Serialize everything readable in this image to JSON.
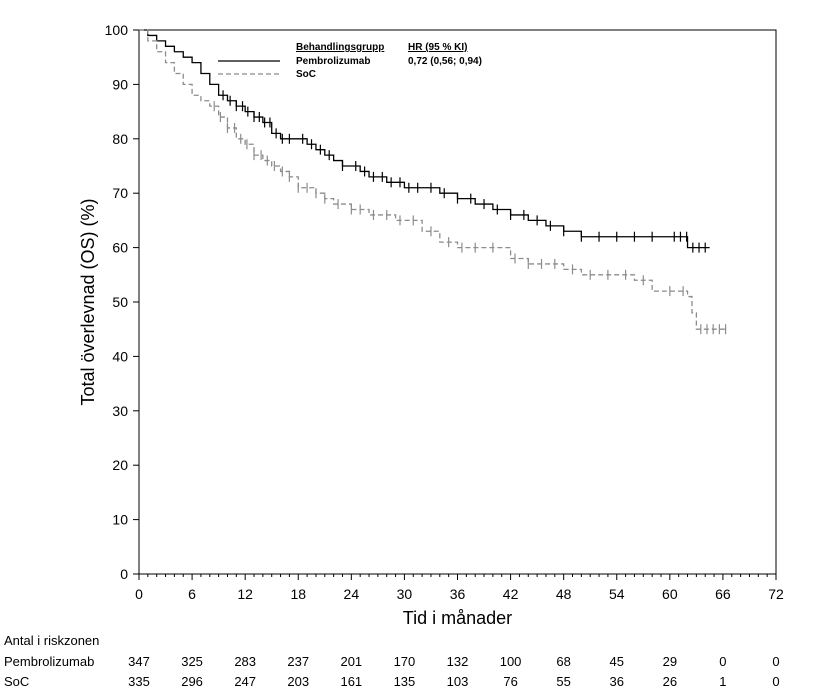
{
  "chart_data": {
    "type": "line",
    "xlabel": "Tid i månader",
    "ylabel": "Total överlevnad (OS) (%)",
    "xlim": [
      0,
      72
    ],
    "ylim": [
      0,
      100
    ],
    "x_ticks": [
      0,
      6,
      12,
      18,
      24,
      30,
      36,
      42,
      48,
      54,
      60,
      66,
      72
    ],
    "y_ticks": [
      0,
      10,
      20,
      30,
      40,
      50,
      60,
      70,
      80,
      90,
      100
    ],
    "legend": {
      "position": "top-center",
      "group_header": "Behandlingsgrupp",
      "hr_header": "HR (95 % KI)",
      "hr_value": "0,72 (0,56; 0,94)"
    },
    "series": [
      {
        "name": "Pembrolizumab",
        "style": "solid",
        "color": "#000000",
        "x": [
          0,
          1,
          2,
          3,
          4,
          5,
          6,
          7,
          8,
          9,
          10,
          11,
          12,
          13,
          14,
          15,
          16,
          17,
          18,
          19,
          20,
          21,
          22,
          23,
          24,
          25,
          26,
          27,
          28,
          29,
          30,
          32,
          34,
          36,
          38,
          40,
          42,
          44,
          46,
          48,
          50,
          52,
          54,
          56,
          58,
          60,
          62,
          64.5
        ],
        "y": [
          100,
          99,
          98,
          97,
          96,
          95,
          94,
          92,
          90,
          88,
          87,
          86,
          85,
          84,
          83,
          81,
          80,
          80,
          80,
          79,
          78,
          77,
          76,
          75,
          75,
          74,
          73,
          73,
          72,
          72,
          71,
          71,
          70,
          69,
          68,
          67,
          66,
          65,
          64,
          63,
          62,
          62,
          62,
          62,
          62,
          62,
          60,
          60
        ],
        "censor_x": [
          9.5,
          10.3,
          11,
          11.7,
          12.3,
          13,
          13.6,
          14.2,
          14.8,
          15.5,
          16.2,
          17,
          18.5,
          19.5,
          20.5,
          21.5,
          23,
          24.5,
          25.5,
          26.5,
          27.5,
          28.5,
          29.5,
          30.5,
          31.5,
          33,
          34.5,
          36,
          37.5,
          39,
          40.5,
          42,
          43.5,
          45,
          46.5,
          48,
          50,
          52,
          54,
          56,
          58,
          60.5,
          61.2,
          61.9,
          62.6,
          63.3,
          64
        ],
        "at_risk": [
          347,
          325,
          283,
          237,
          201,
          170,
          132,
          100,
          68,
          45,
          29,
          0,
          0
        ]
      },
      {
        "name": "SoC",
        "style": "dashed",
        "color": "#8c8c8c",
        "x": [
          0,
          1,
          2,
          3,
          4,
          5,
          6,
          7,
          8,
          9,
          10,
          11,
          12,
          13,
          14,
          15,
          16,
          17,
          18,
          19,
          20,
          21,
          22,
          23,
          24,
          25,
          26,
          27,
          28,
          29,
          30,
          32,
          34,
          36,
          38,
          40,
          42,
          44,
          46,
          48,
          50,
          52,
          54,
          56,
          58,
          60,
          61,
          62,
          62.5,
          63,
          66.5
        ],
        "y": [
          100,
          98,
          96,
          94,
          92,
          90,
          88,
          87,
          86,
          84,
          82,
          80,
          79,
          77,
          76,
          75,
          74,
          73,
          71,
          71,
          70,
          69,
          68,
          68,
          67,
          67,
          66,
          66,
          66,
          65,
          65,
          63,
          61,
          60,
          60,
          60,
          58,
          57,
          57,
          56,
          55,
          55,
          55,
          54,
          52,
          52,
          52,
          51,
          48,
          45,
          45
        ],
        "censor_x": [
          8.5,
          9.2,
          10,
          10.8,
          11.5,
          12.2,
          13,
          13.8,
          14.5,
          15.3,
          16.2,
          17,
          18,
          19,
          20,
          21,
          22.5,
          24,
          25,
          26.5,
          28,
          29.5,
          31,
          33,
          35,
          36.5,
          38,
          40,
          42.5,
          44,
          45.5,
          47,
          49,
          51,
          53,
          55,
          57,
          60,
          61.5,
          63.5,
          64.2,
          64.9,
          65.6,
          66.3
        ],
        "at_risk": [
          335,
          296,
          247,
          203,
          161,
          135,
          103,
          76,
          55,
          36,
          26,
          1,
          0
        ]
      }
    ],
    "at_risk_table": {
      "title": "Antal i riskzonen",
      "x": [
        0,
        6,
        12,
        18,
        24,
        30,
        36,
        42,
        48,
        54,
        60,
        66,
        72
      ]
    }
  }
}
